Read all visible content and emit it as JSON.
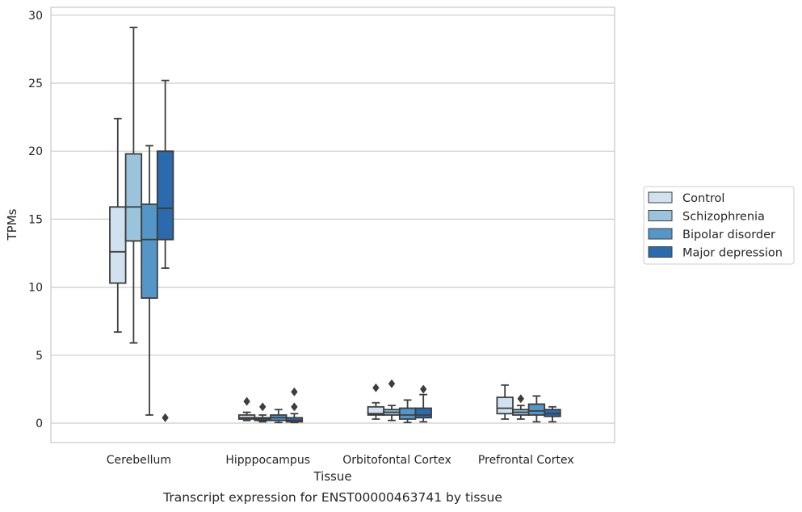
{
  "chart_data": {
    "type": "boxplot",
    "title": "",
    "caption": "Transcript expression for ENST00000463741 by tissue",
    "xlabel": "Tissue",
    "ylabel": "TPMs",
    "ylim": [
      -1.4,
      30.6
    ],
    "yticks": [
      0,
      5,
      10,
      15,
      20,
      25,
      30
    ],
    "grid": "horizontal",
    "legend_position": "right",
    "categories": [
      "Cerebellum",
      "Hipppocampus",
      "Orbitofontal Cortex",
      "Prefrontal Cortex"
    ],
    "series": [
      {
        "name": "Control",
        "color": "#d1e1f0",
        "boxes": [
          {
            "whislo": 6.7,
            "q1": 10.3,
            "med": 12.6,
            "q3": 15.9,
            "whishi": 22.4,
            "fliers": []
          },
          {
            "whislo": 0.2,
            "q1": 0.3,
            "med": 0.4,
            "q3": 0.6,
            "whishi": 0.8,
            "fliers": [
              1.6
            ]
          },
          {
            "whislo": 0.3,
            "q1": 0.6,
            "med": 0.7,
            "q3": 1.2,
            "whishi": 1.5,
            "fliers": [
              2.6
            ]
          },
          {
            "whislo": 0.3,
            "q1": 0.7,
            "med": 1.1,
            "q3": 1.9,
            "whishi": 2.8,
            "fliers": []
          }
        ]
      },
      {
        "name": "Schizophrenia",
        "color": "#9bc3dc",
        "boxes": [
          {
            "whislo": 5.9,
            "q1": 13.4,
            "med": 15.9,
            "q3": 19.8,
            "whishi": 29.1,
            "fliers": []
          },
          {
            "whislo": 0.1,
            "q1": 0.2,
            "med": 0.3,
            "q3": 0.4,
            "whishi": 0.6,
            "fliers": [
              1.2
            ]
          },
          {
            "whislo": 0.2,
            "q1": 0.6,
            "med": 0.8,
            "q3": 1.0,
            "whishi": 1.3,
            "fliers": [
              2.9
            ]
          },
          {
            "whislo": 0.3,
            "q1": 0.6,
            "med": 0.8,
            "q3": 1.0,
            "whishi": 1.3,
            "fliers": [
              1.8
            ]
          }
        ]
      },
      {
        "name": "Bipolar disorder",
        "color": "#5596c8",
        "boxes": [
          {
            "whislo": 0.6,
            "q1": 9.2,
            "med": 13.5,
            "q3": 16.1,
            "whishi": 20.4,
            "fliers": []
          },
          {
            "whislo": 0.05,
            "q1": 0.2,
            "med": 0.4,
            "q3": 0.6,
            "whishi": 1.0,
            "fliers": []
          },
          {
            "whislo": 0.05,
            "q1": 0.3,
            "med": 0.6,
            "q3": 1.1,
            "whishi": 1.7,
            "fliers": []
          },
          {
            "whislo": 0.1,
            "q1": 0.6,
            "med": 0.9,
            "q3": 1.4,
            "whishi": 2.0,
            "fliers": []
          }
        ]
      },
      {
        "name": "Major depression",
        "color": "#2a6aad",
        "boxes": [
          {
            "whislo": 11.4,
            "q1": 13.5,
            "med": 15.8,
            "q3": 20.0,
            "whishi": 25.2,
            "fliers": [
              0.4
            ]
          },
          {
            "whislo": 0.05,
            "q1": 0.1,
            "med": 0.2,
            "q3": 0.4,
            "whishi": 0.7,
            "fliers": [
              1.2,
              2.3
            ]
          },
          {
            "whislo": 0.1,
            "q1": 0.4,
            "med": 0.6,
            "q3": 1.1,
            "whishi": 2.1,
            "fliers": [
              2.5
            ]
          },
          {
            "whislo": 0.1,
            "q1": 0.5,
            "med": 0.7,
            "q3": 1.0,
            "whishi": 1.2,
            "fliers": []
          }
        ]
      }
    ]
  }
}
